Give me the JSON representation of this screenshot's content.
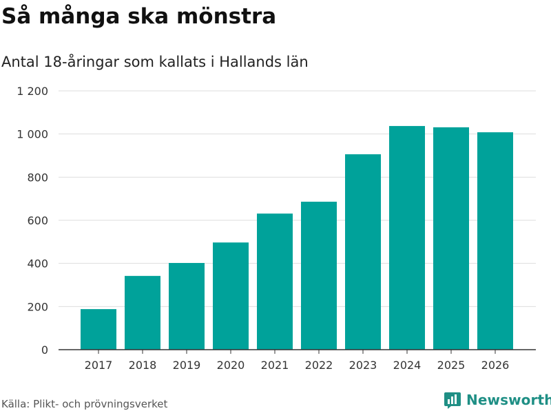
{
  "header": {
    "title": "Så många ska mönstra",
    "subtitle": "Antal 18-åringar som kallats i Hallands län"
  },
  "footer": {
    "source": "Källa: Plikt- och prövningsverket",
    "brand": "Newsworthy",
    "brand_icon": "bar-chart-logo-icon"
  },
  "colors": {
    "bar": "#00a29a",
    "grid": "#dddddd",
    "axis": "#333333",
    "brand": "#1f8f85"
  },
  "chart_data": {
    "type": "bar",
    "title": "Så många ska mönstra",
    "subtitle": "Antal 18-åringar som kallats i Hallands län",
    "xlabel": "",
    "ylabel": "",
    "categories": [
      "2017",
      "2018",
      "2019",
      "2020",
      "2021",
      "2022",
      "2023",
      "2024",
      "2025",
      "2026"
    ],
    "values": [
      188,
      342,
      402,
      497,
      631,
      686,
      906,
      1037,
      1031,
      1008
    ],
    "ylim": [
      0,
      1200
    ],
    "yticks": [
      0,
      200,
      400,
      600,
      800,
      1000,
      1200
    ],
    "ytick_labels": [
      "0",
      "200",
      "400",
      "600",
      "800",
      "1 000",
      "1 200"
    ],
    "grid": true,
    "legend": "none"
  }
}
